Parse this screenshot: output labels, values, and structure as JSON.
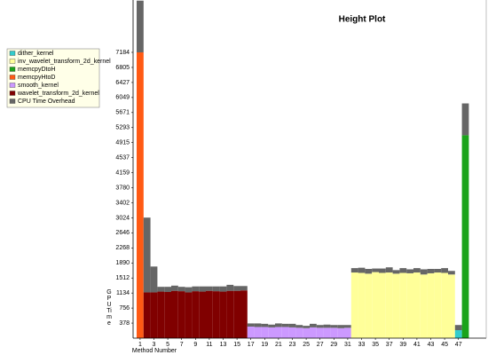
{
  "chart_data": {
    "type": "stacked_bar",
    "title": "Height Plot",
    "x_label": "Method Number",
    "y_label": "GPU Time",
    "categories": [
      1,
      null,
      3,
      null,
      5,
      null,
      7,
      null,
      9,
      null,
      11,
      null,
      13,
      null,
      15,
      null,
      17,
      null,
      19,
      null,
      21,
      null,
      23,
      null,
      25,
      null,
      27,
      null,
      29,
      null,
      31,
      null,
      33,
      null,
      35,
      null,
      37,
      null,
      39,
      null,
      41,
      null,
      43,
      null,
      45,
      null,
      47,
      null
    ],
    "ylim": [
      0,
      8500
    ],
    "yticks": [
      378,
      756,
      1134,
      1512,
      1890,
      2268,
      2646,
      3024,
      3402,
      3780,
      4159,
      4537,
      4915,
      5293,
      5671,
      6049,
      6427,
      6805,
      7184
    ],
    "series": [
      {
        "name": "dither_kernel",
        "color": "#33cccc",
        "values": [
          0,
          0,
          0,
          0,
          0,
          0,
          0,
          0,
          0,
          0,
          0,
          0,
          0,
          0,
          0,
          0,
          0,
          0,
          0,
          0,
          0,
          0,
          0,
          0,
          0,
          0,
          0,
          0,
          0,
          0,
          0,
          0,
          0,
          0,
          0,
          0,
          0,
          0,
          0,
          0,
          0,
          0,
          0,
          0,
          0,
          0,
          200,
          0
        ]
      },
      {
        "name": "inv_wavelet_transform_2d_kernel",
        "color": "#ffff99",
        "values": [
          0,
          0,
          0,
          0,
          0,
          0,
          0,
          0,
          0,
          0,
          0,
          0,
          0,
          0,
          0,
          0,
          0,
          0,
          0,
          0,
          0,
          0,
          0,
          0,
          0,
          0,
          0,
          0,
          0,
          0,
          0,
          1650,
          1640,
          1620,
          1660,
          1640,
          1650,
          1620,
          1640,
          1630,
          1650,
          1600,
          1630,
          1650,
          1640,
          1600,
          0,
          0
        ]
      },
      {
        "name": "memcpyDtoH",
        "color": "#1aa31a",
        "values": [
          0,
          0,
          0,
          0,
          0,
          0,
          0,
          0,
          0,
          0,
          0,
          0,
          0,
          0,
          0,
          0,
          0,
          0,
          0,
          0,
          0,
          0,
          0,
          0,
          0,
          0,
          0,
          0,
          0,
          0,
          0,
          0,
          0,
          0,
          0,
          0,
          0,
          0,
          0,
          0,
          0,
          0,
          0,
          0,
          0,
          0,
          0,
          5100
        ]
      },
      {
        "name": "memcpyHtoD",
        "color": "#ff5a14",
        "values": [
          7184,
          0,
          0,
          0,
          0,
          0,
          0,
          0,
          0,
          0,
          0,
          0,
          0,
          0,
          0,
          0,
          0,
          0,
          0,
          0,
          0,
          0,
          0,
          0,
          0,
          0,
          0,
          0,
          0,
          0,
          0,
          0,
          0,
          0,
          0,
          0,
          0,
          0,
          0,
          0,
          0,
          0,
          0,
          0,
          0,
          0,
          0,
          0
        ]
      },
      {
        "name": "smooth_kernel",
        "color": "#cc99ff",
        "values": [
          0,
          0,
          0,
          0,
          0,
          0,
          0,
          0,
          0,
          0,
          0,
          0,
          0,
          0,
          0,
          0,
          290,
          280,
          280,
          270,
          280,
          280,
          270,
          260,
          250,
          270,
          260,
          260,
          260,
          250,
          260,
          0,
          0,
          0,
          0,
          0,
          0,
          0,
          0,
          0,
          0,
          0,
          0,
          0,
          0,
          0,
          0,
          0
        ]
      },
      {
        "name": "wavelet_transform_2d_kernel",
        "color": "#800000",
        "values": [
          0,
          1150,
          1150,
          1170,
          1160,
          1190,
          1180,
          1150,
          1180,
          1170,
          1190,
          1180,
          1170,
          1190,
          1190,
          1200,
          0,
          0,
          0,
          0,
          0,
          0,
          0,
          0,
          0,
          0,
          0,
          0,
          0,
          0,
          0,
          0,
          0,
          0,
          0,
          0,
          0,
          0,
          0,
          0,
          0,
          0,
          0,
          0,
          0,
          0,
          0,
          0
        ]
      },
      {
        "name": "CPU Time Overhead",
        "color": "#666666",
        "values": [
          1300,
          1880,
          650,
          120,
          130,
          130,
          110,
          130,
          120,
          130,
          110,
          120,
          130,
          150,
          120,
          110,
          80,
          90,
          80,
          70,
          90,
          80,
          90,
          70,
          60,
          90,
          70,
          80,
          70,
          80,
          70,
          110,
          130,
          120,
          90,
          110,
          130,
          90,
          120,
          100,
          110,
          130,
          110,
          90,
          120,
          90,
          130,
          800
        ]
      }
    ]
  }
}
